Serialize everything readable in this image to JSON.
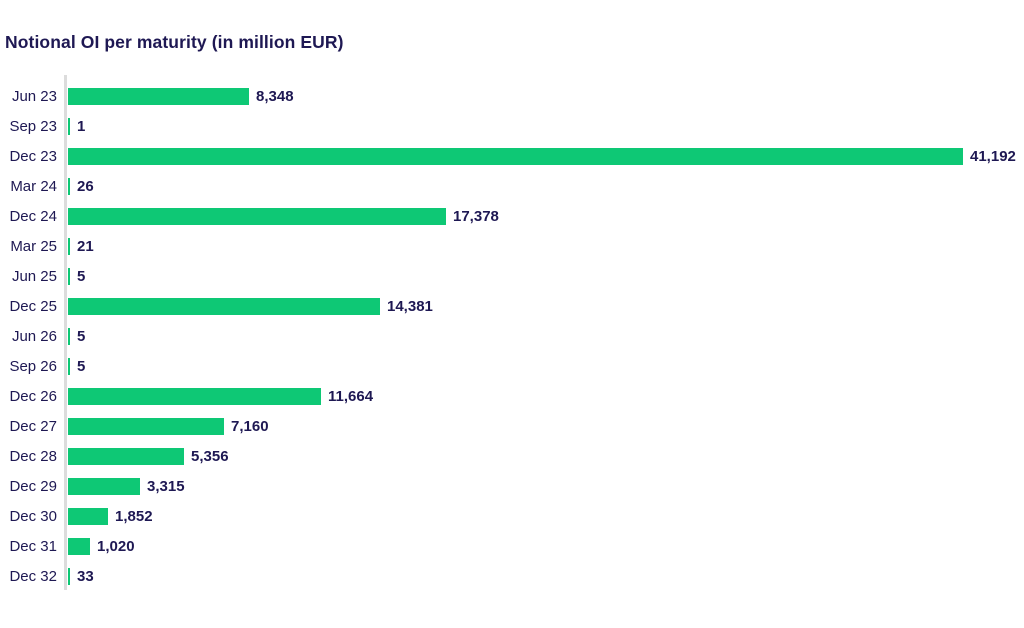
{
  "page": {
    "background": "#FFFFFF"
  },
  "chart_data": {
    "type": "bar",
    "orientation": "horizontal",
    "title": "Notional OI per maturity (in million EUR)",
    "unit": "million EUR",
    "categories": [
      "Jun 23",
      "Sep 23",
      "Dec 23",
      "Mar 24",
      "Dec 24",
      "Mar 25",
      "Jun 25",
      "Dec 25",
      "Jun 26",
      "Sep 26",
      "Dec 26",
      "Dec 27",
      "Dec 28",
      "Dec 29",
      "Dec 30",
      "Dec 31",
      "Dec 32"
    ],
    "values": [
      8348,
      1,
      41192,
      26,
      17378,
      21,
      5,
      14381,
      5,
      5,
      11664,
      7160,
      5356,
      3315,
      1852,
      1020,
      33
    ],
    "value_labels": [
      "8,348",
      "1",
      "41,192",
      "26",
      "17,378",
      "21",
      "5",
      "14,381",
      "5",
      "5",
      "11,664",
      "7,160",
      "5,356",
      "3,315",
      "1,852",
      "1,020",
      "33"
    ],
    "xlabel": "",
    "ylabel": "",
    "xlim": [
      0,
      41192
    ],
    "grid": false,
    "legend": false,
    "colors": {
      "bar": "#0EC875",
      "text": "#1E1853",
      "axis": "#DCDCDC"
    }
  }
}
